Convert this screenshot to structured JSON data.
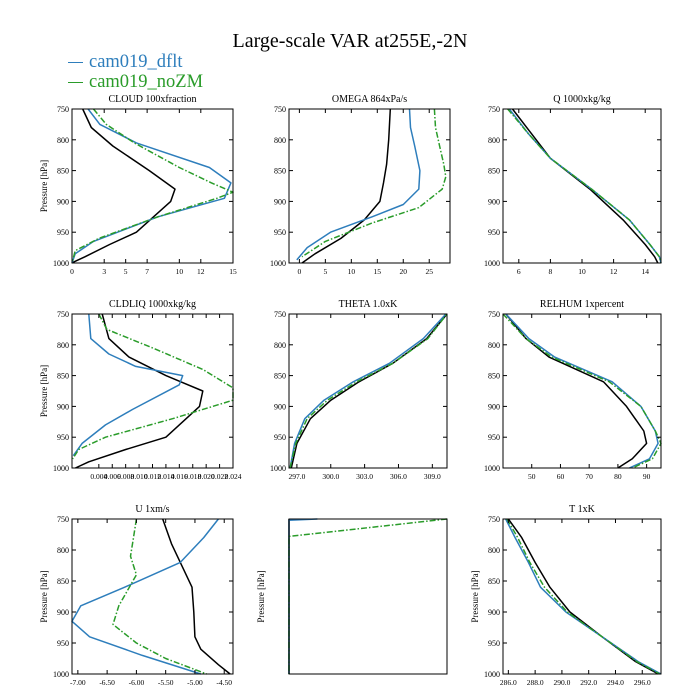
{
  "title": "Large-scale VAR at255E,-2N",
  "legend": [
    {
      "label": "cam019_dflt",
      "color": "#2e7ebc",
      "dash": "solid"
    },
    {
      "label": "cam019_noZM",
      "color": "#2a9c2a",
      "dash": "dash-dot"
    }
  ],
  "colors": {
    "ref": "#000000",
    "dflt": "#2e7ebc",
    "noZM": "#2a9c2a"
  },
  "chart_data": [
    {
      "type": "line",
      "title": "CLOUD  100xfraction",
      "ylabel": "Pressure [hPa]",
      "xlim": [
        0,
        15
      ],
      "ylim": [
        1000,
        750
      ],
      "xticks": [
        0,
        3,
        5,
        7,
        10,
        12,
        15
      ],
      "xticklabels": [
        "0",
        "3",
        "5",
        "7",
        "10",
        "12",
        "15"
      ],
      "yticks": [
        750,
        800,
        850,
        900,
        950,
        1000
      ],
      "yticklabels": [
        "750",
        "800",
        "850",
        "900",
        "950",
        "1000"
      ],
      "series": [
        {
          "key": "ref",
          "x": [
            1.0,
            1.8,
            3.8,
            7.2,
            9.6,
            9.2,
            6.0,
            3.5,
            1.2,
            0.2,
            0.0
          ],
          "y": [
            750,
            780,
            810,
            850,
            880,
            900,
            950,
            970,
            990,
            998,
            1000
          ]
        },
        {
          "key": "dflt",
          "x": [
            1.5,
            2.6,
            6.0,
            12.8,
            14.8,
            14.2,
            8.0,
            2.0,
            0.3,
            0.0
          ],
          "y": [
            750,
            775,
            805,
            845,
            870,
            895,
            925,
            965,
            985,
            1000
          ]
        },
        {
          "key": "noZM",
          "x": [
            2.0,
            3.2,
            5.8,
            10.0,
            13.0,
            15.0,
            13.5,
            8.0,
            2.5,
            0.3,
            0.0
          ],
          "y": [
            750,
            775,
            805,
            845,
            870,
            885,
            895,
            925,
            960,
            980,
            1000
          ]
        }
      ]
    },
    {
      "type": "line",
      "title": "OMEGA  864xPa/s",
      "ylabel": "",
      "xlim": [
        -2,
        29
      ],
      "ylim": [
        1000,
        750
      ],
      "xticks": [
        0,
        5,
        10,
        15,
        20,
        25
      ],
      "xticklabels": [
        "0",
        "5",
        "10",
        "15",
        "20",
        "25"
      ],
      "yticks": [
        750,
        800,
        850,
        900,
        950,
        1000
      ],
      "yticklabels": [
        "750",
        "800",
        "850",
        "900",
        "950",
        "1000"
      ],
      "series": [
        {
          "key": "ref",
          "x": [
            17.5,
            17.2,
            16.8,
            16.2,
            15.5,
            12.5,
            8.0,
            3.0,
            0.5
          ],
          "y": [
            750,
            800,
            840,
            870,
            900,
            930,
            960,
            985,
            1000
          ]
        },
        {
          "key": "dflt",
          "x": [
            21.2,
            21.4,
            22.2,
            23.2,
            23.0,
            20.0,
            14.0,
            6.0,
            1.5,
            -0.5
          ],
          "y": [
            750,
            780,
            810,
            850,
            880,
            905,
            925,
            950,
            975,
            995
          ]
        },
        {
          "key": "noZM",
          "x": [
            26.0,
            26.2,
            27.0,
            27.8,
            28.2,
            27.5,
            23.0,
            14.0,
            5.0,
            0.5
          ],
          "y": [
            750,
            780,
            810,
            840,
            860,
            880,
            910,
            935,
            965,
            990
          ]
        }
      ]
    },
    {
      "type": "line",
      "title": "Q  1000xkg/kg",
      "ylabel": "",
      "xlim": [
        5,
        15
      ],
      "ylim": [
        1000,
        750
      ],
      "xticks": [
        6,
        8,
        10,
        12,
        14
      ],
      "xticklabels": [
        "6",
        "8",
        "10",
        "12",
        "14"
      ],
      "yticks": [
        750,
        800,
        850,
        900,
        950,
        1000
      ],
      "yticklabels": [
        "750",
        "800",
        "850",
        "900",
        "950",
        "1000"
      ],
      "series": [
        {
          "key": "ref",
          "x": [
            5.6,
            6.8,
            8.0,
            10.5,
            12.6,
            14.0,
            14.6,
            14.8
          ],
          "y": [
            750,
            790,
            830,
            880,
            930,
            970,
            990,
            1000
          ]
        },
        {
          "key": "dflt",
          "x": [
            5.4,
            6.6,
            8.0,
            10.6,
            13.0,
            14.3,
            14.9,
            15.0
          ],
          "y": [
            750,
            790,
            830,
            880,
            930,
            970,
            990,
            1000
          ]
        },
        {
          "key": "noZM",
          "x": [
            5.3,
            6.6,
            8.0,
            10.6,
            13.0,
            14.3,
            14.9,
            15.0
          ],
          "y": [
            750,
            790,
            830,
            880,
            930,
            970,
            990,
            1000
          ]
        }
      ]
    },
    {
      "type": "line",
      "title": "CLDLIQ  1000xkg/kg",
      "ylabel": "Pressure [hPa]",
      "xlim": [
        0,
        0.024
      ],
      "ylim": [
        1000,
        750
      ],
      "xticks": [
        0.004,
        0.006,
        0.008,
        0.01,
        0.012,
        0.014,
        0.016,
        0.018,
        0.02,
        0.022,
        0.024
      ],
      "xticklabels": [
        "0.004",
        "0.006",
        "0.008",
        "0.010",
        "0.012",
        "0.014",
        "0.016",
        "0.018",
        "0.020",
        "0.022",
        "0.024"
      ],
      "yticks": [
        750,
        800,
        850,
        900,
        950,
        1000
      ],
      "yticklabels": [
        "750",
        "800",
        "850",
        "900",
        "950",
        "1000"
      ],
      "series": [
        {
          "key": "ref",
          "x": [
            0.0045,
            0.0055,
            0.0085,
            0.014,
            0.0195,
            0.019,
            0.014,
            0.008,
            0.0025,
            0.0005
          ],
          "y": [
            750,
            790,
            820,
            850,
            875,
            900,
            950,
            970,
            990,
            1000
          ]
        },
        {
          "key": "dflt",
          "x": [
            0.0025,
            0.0028,
            0.0055,
            0.0095,
            0.0165,
            0.016,
            0.009,
            0.005,
            0.0015,
            0.0002
          ],
          "y": [
            750,
            790,
            815,
            835,
            850,
            865,
            905,
            930,
            960,
            980
          ]
        },
        {
          "key": "noZM",
          "x": [
            0.004,
            0.0052,
            0.012,
            0.0195,
            0.024,
            0.024,
            0.015,
            0.005,
            0.001,
            0.0001
          ],
          "y": [
            750,
            775,
            805,
            840,
            870,
            890,
            920,
            950,
            970,
            985
          ]
        }
      ]
    },
    {
      "type": "line",
      "title": "THETA  1.0xK",
      "ylabel": "",
      "xlim": [
        296.3,
        310.3
      ],
      "ylim": [
        1000,
        750
      ],
      "xticks": [
        297.0,
        300.0,
        303.0,
        306.0,
        309.0
      ],
      "xticklabels": [
        "297.0",
        "300.0",
        "303.0",
        "306.0",
        "309.0"
      ],
      "yticks": [
        750,
        800,
        850,
        900,
        950,
        1000
      ],
      "yticklabels": [
        "750",
        "800",
        "850",
        "900",
        "950",
        "1000"
      ],
      "series": [
        {
          "key": "ref",
          "x": [
            296.5,
            297.0,
            298.2,
            300.0,
            302.5,
            305.5,
            308.5,
            310.3
          ],
          "y": [
            1000,
            960,
            920,
            890,
            860,
            830,
            790,
            750
          ]
        },
        {
          "key": "dflt",
          "x": [
            296.4,
            296.8,
            297.7,
            299.4,
            302.0,
            305.2,
            308.2,
            310.2
          ],
          "y": [
            1000,
            960,
            920,
            890,
            860,
            830,
            790,
            750
          ]
        },
        {
          "key": "noZM",
          "x": [
            296.4,
            296.9,
            297.9,
            299.7,
            302.3,
            305.5,
            308.6,
            310.3
          ],
          "y": [
            1000,
            960,
            920,
            890,
            860,
            830,
            790,
            750
          ]
        }
      ]
    },
    {
      "type": "line",
      "title": "RELHUM  1xpercent",
      "ylabel": "",
      "xlim": [
        40,
        95
      ],
      "ylim": [
        1000,
        750
      ],
      "xticks": [
        50,
        60,
        70,
        80,
        90
      ],
      "xticklabels": [
        "50",
        "60",
        "70",
        "80",
        "90"
      ],
      "yticks": [
        750,
        800,
        850,
        900,
        950,
        1000
      ],
      "yticklabels": [
        "750",
        "800",
        "850",
        "900",
        "950",
        "1000"
      ],
      "series": [
        {
          "key": "ref",
          "x": [
            41,
            48,
            56,
            75,
            83,
            89,
            90,
            85,
            80
          ],
          "y": [
            750,
            790,
            820,
            860,
            900,
            940,
            960,
            985,
            1000
          ]
        },
        {
          "key": "dflt",
          "x": [
            41,
            49,
            58,
            78,
            88,
            93,
            94,
            91,
            84
          ],
          "y": [
            750,
            790,
            820,
            860,
            900,
            940,
            960,
            985,
            1000
          ]
        },
        {
          "key": "noZM",
          "x": [
            40,
            48,
            57,
            77,
            88,
            93,
            95,
            92,
            85
          ],
          "y": [
            750,
            790,
            820,
            860,
            900,
            940,
            960,
            985,
            1000
          ]
        }
      ]
    },
    {
      "type": "line",
      "title": "U  1xm/s",
      "ylabel": "Pressure [hPa]",
      "xlim": [
        -7.1,
        -4.35
      ],
      "ylim": [
        1000,
        750
      ],
      "xticks": [
        -7.0,
        -6.5,
        -6.0,
        -5.5,
        -5.0,
        -4.5
      ],
      "xticklabels": [
        "-7.00",
        "-6.50",
        "-6.00",
        "-5.50",
        "-5.00",
        "-4.50"
      ],
      "yticks": [
        750,
        800,
        850,
        900,
        950,
        1000
      ],
      "yticklabels": [
        "750",
        "800",
        "850",
        "900",
        "950",
        "1000"
      ],
      "series": [
        {
          "key": "ref",
          "x": [
            -5.55,
            -5.4,
            -5.2,
            -5.05,
            -5.02,
            -5.0,
            -4.9,
            -4.6,
            -4.4
          ],
          "y": [
            750,
            790,
            830,
            860,
            900,
            940,
            960,
            985,
            1000
          ]
        },
        {
          "key": "dflt",
          "x": [
            -4.6,
            -4.85,
            -5.25,
            -6.2,
            -6.95,
            -7.1,
            -6.8,
            -5.9,
            -4.9
          ],
          "y": [
            750,
            780,
            820,
            860,
            890,
            915,
            940,
            970,
            1000
          ]
        },
        {
          "key": "noZM",
          "x": [
            -6.0,
            -6.05,
            -6.1,
            -6.0,
            -6.3,
            -6.4,
            -6.0,
            -5.5,
            -4.8
          ],
          "y": [
            750,
            780,
            810,
            840,
            890,
            920,
            950,
            975,
            1000
          ]
        }
      ]
    },
    {
      "type": "line",
      "title": "",
      "ylabel": "Pressure [hPa]",
      "xlim": [
        0,
        1
      ],
      "ylim": [
        1000,
        750
      ],
      "xticks": [],
      "xticklabels": [],
      "yticks": [],
      "yticklabels": [],
      "series": [
        {
          "key": "ref",
          "x": [
            0.0,
            0.0
          ],
          "y": [
            750,
            1000
          ]
        },
        {
          "key": "dflt",
          "x": [
            0.18,
            0.0,
            0.0
          ],
          "y": [
            750,
            752,
            1000
          ]
        },
        {
          "key": "noZM",
          "x": [
            1.0,
            0.0,
            0.0
          ],
          "y": [
            750,
            778,
            1000
          ]
        }
      ]
    },
    {
      "type": "line",
      "title": "T  1xK",
      "ylabel": "Pressure [hPa]",
      "xlim": [
        285.6,
        297.4
      ],
      "ylim": [
        1000,
        750
      ],
      "xticks": [
        286.0,
        288.0,
        290.0,
        292.0,
        294.0,
        296.0
      ],
      "xticklabels": [
        "286.0",
        "288.0",
        "290.0",
        "292.0",
        "294.0",
        "296.0"
      ],
      "yticks": [
        750,
        800,
        850,
        900,
        950,
        1000
      ],
      "yticklabels": [
        "750",
        "800",
        "850",
        "900",
        "950",
        "1000"
      ],
      "series": [
        {
          "key": "ref",
          "x": [
            286.0,
            287.0,
            288.0,
            289.1,
            290.6,
            293.0,
            295.5,
            297.2
          ],
          "y": [
            750,
            780,
            820,
            860,
            900,
            940,
            980,
            1000
          ]
        },
        {
          "key": "dflt",
          "x": [
            285.8,
            286.5,
            287.5,
            288.4,
            290.3,
            293.0,
            295.7,
            297.4
          ],
          "y": [
            750,
            780,
            820,
            860,
            900,
            940,
            980,
            1000
          ]
        },
        {
          "key": "noZM",
          "x": [
            285.9,
            286.7,
            287.6,
            288.7,
            290.4,
            293.0,
            295.6,
            297.3
          ],
          "y": [
            750,
            780,
            820,
            860,
            900,
            940,
            980,
            1000
          ]
        }
      ]
    }
  ]
}
